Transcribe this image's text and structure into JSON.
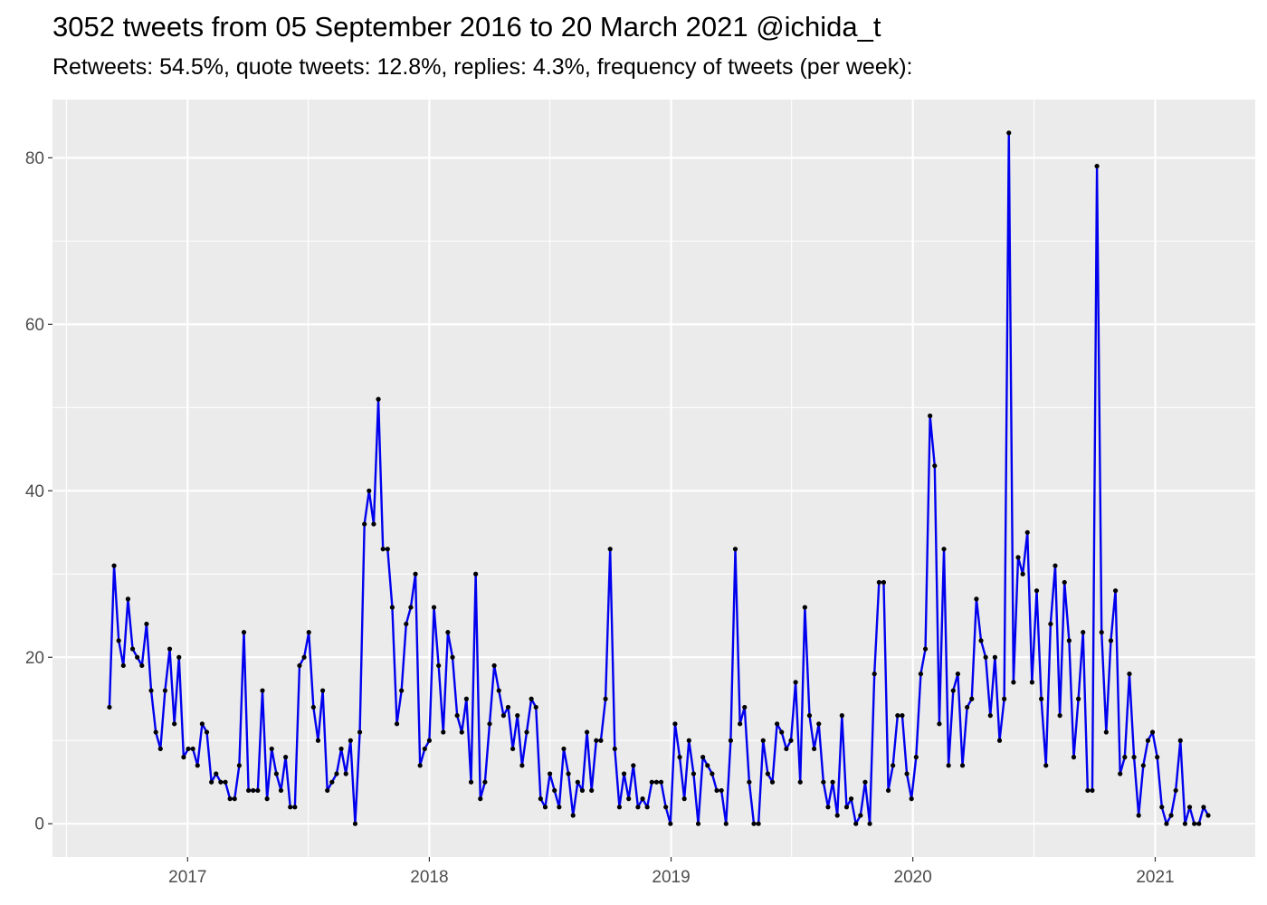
{
  "header": {
    "title": "3052 tweets from 05 September 2016 to 20 March 2021 @ichida_t",
    "subtitle": "Retweets: 54.5%, quote tweets: 12.8%, replies: 4.3%, frequency of tweets (per week):"
  },
  "colors": {
    "line": "#0000ee",
    "point": "#000000",
    "panel": "#ebebeb",
    "grid": "#ffffff"
  },
  "chart_data": {
    "type": "line",
    "title": "3052 tweets from 05 September 2016 to 20 March 2021 @ichida_t",
    "subtitle": "Retweets: 54.5%, quote tweets: 12.8%, replies: 4.3%, frequency of tweets (per week):",
    "xlabel": "",
    "ylabel": "",
    "x_start": "2016-09-05",
    "x_interval": "1 week",
    "xlim": [
      "2016-06-11",
      "2021-06-01"
    ],
    "ylim": [
      -4,
      87
    ],
    "x_tick_labels": [
      "2017",
      "2018",
      "2019",
      "2020",
      "2021"
    ],
    "y_ticks": [
      0,
      20,
      40,
      60,
      80
    ],
    "grid": true,
    "legend": "none",
    "series": [
      {
        "values": [
          14,
          31,
          22,
          19,
          27,
          21,
          20,
          19,
          24,
          16,
          11,
          9,
          16,
          21,
          12,
          20,
          8,
          9,
          9,
          7,
          12,
          11,
          5,
          6,
          5,
          5,
          3,
          3,
          7,
          23,
          4,
          4,
          4,
          16,
          3,
          9,
          6,
          4,
          8,
          2,
          2,
          19,
          20,
          23,
          14,
          10,
          16,
          4,
          5,
          6,
          9,
          6,
          10,
          0,
          11,
          36,
          40,
          36,
          51,
          33,
          33,
          26,
          12,
          16,
          24,
          26,
          30,
          7,
          9,
          10,
          26,
          19,
          11,
          23,
          20,
          13,
          11,
          15,
          5,
          30,
          3,
          5,
          12,
          19,
          16,
          13,
          14,
          9,
          13,
          7,
          11,
          15,
          14,
          3,
          2,
          6,
          4,
          2,
          9,
          6,
          1,
          5,
          4,
          11,
          4,
          10,
          10,
          15,
          33,
          9,
          2,
          6,
          3,
          7,
          2,
          3,
          2,
          5,
          5,
          5,
          2,
          0,
          12,
          8,
          3,
          10,
          6,
          0,
          8,
          7,
          6,
          4,
          4,
          0,
          10,
          33,
          12,
          14,
          5,
          0,
          0,
          10,
          6,
          5,
          12,
          11,
          9,
          10,
          17,
          5,
          26,
          13,
          9,
          12,
          5,
          2,
          5,
          1,
          13,
          2,
          3,
          0,
          1,
          5,
          0,
          18,
          29,
          29,
          4,
          7,
          13,
          13,
          6,
          3,
          8,
          18,
          21,
          49,
          43,
          12,
          33,
          7,
          16,
          18,
          7,
          14,
          15,
          27,
          22,
          20,
          13,
          20,
          10,
          15,
          83,
          17,
          32,
          30,
          35,
          17,
          28,
          15,
          7,
          24,
          31,
          13,
          29,
          22,
          8,
          15,
          23,
          4,
          4,
          79,
          23,
          11,
          22,
          28,
          6,
          8,
          18,
          8,
          1,
          7,
          10,
          11,
          8,
          2,
          0,
          1,
          4,
          10,
          0,
          2,
          0,
          0,
          2,
          1
        ]
      }
    ]
  }
}
